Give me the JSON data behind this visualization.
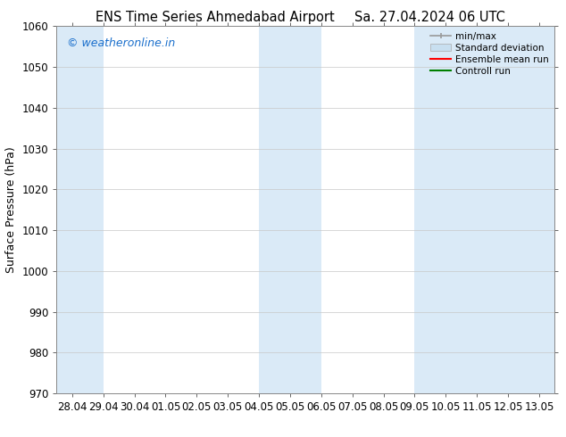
{
  "title_left": "ENS Time Series Ahmedabad Airport",
  "title_right": "Sa. 27.04.2024 06 UTC",
  "ylabel": "Surface Pressure (hPa)",
  "ylim": [
    970,
    1060
  ],
  "yticks": [
    970,
    980,
    990,
    1000,
    1010,
    1020,
    1030,
    1040,
    1050,
    1060
  ],
  "xtick_labels": [
    "28.04",
    "29.04",
    "30.04",
    "01.05",
    "02.05",
    "03.05",
    "04.05",
    "05.05",
    "06.05",
    "07.05",
    "08.05",
    "09.05",
    "10.05",
    "11.05",
    "12.05",
    "13.05"
  ],
  "xtick_positions": [
    0,
    1,
    2,
    3,
    4,
    5,
    6,
    7,
    8,
    9,
    10,
    11,
    12,
    13,
    14,
    15
  ],
  "xlim": [
    -0.5,
    15.5
  ],
  "shaded_bands": [
    {
      "x_start": -0.5,
      "x_end": 1.0,
      "color": "#daeaf7"
    },
    {
      "x_start": 6.0,
      "x_end": 8.0,
      "color": "#daeaf7"
    },
    {
      "x_start": 11.0,
      "x_end": 15.5,
      "color": "#daeaf7"
    }
  ],
  "background_color": "#ffffff",
  "plot_bg_color": "#ffffff",
  "grid_color": "#c8c8c8",
  "watermark_text": "© weatheronline.in",
  "watermark_color": "#1a6fcc",
  "legend_items": [
    {
      "label": "min/max",
      "color": "#999999",
      "type": "errorbar"
    },
    {
      "label": "Standard deviation",
      "color": "#c8dff0",
      "type": "fill"
    },
    {
      "label": "Ensemble mean run",
      "color": "#ff0000",
      "type": "line"
    },
    {
      "label": "Controll run",
      "color": "#008000",
      "type": "line"
    }
  ],
  "title_fontsize": 10.5,
  "label_fontsize": 9,
  "tick_fontsize": 8.5,
  "watermark_fontsize": 9
}
